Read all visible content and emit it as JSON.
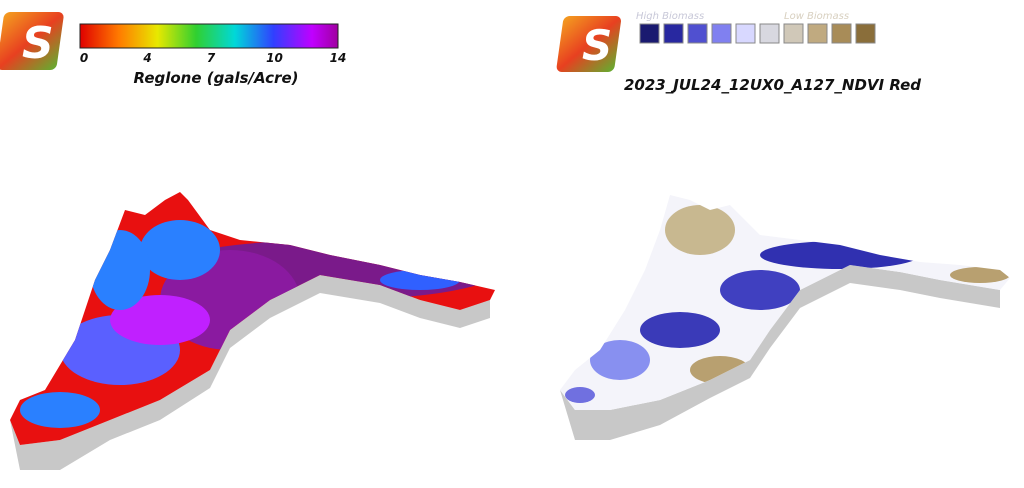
{
  "left_panel": {
    "legend": {
      "ticks": [
        "0",
        "4",
        "7",
        "10",
        "14"
      ],
      "label": "Reglone (gals/Acre)"
    }
  },
  "right_panel": {
    "legend": {
      "high_label": "High Biomass",
      "low_label": "Low Biomass"
    },
    "title": "2023_JUL24_12UX0_A127_NDVI Red"
  }
}
